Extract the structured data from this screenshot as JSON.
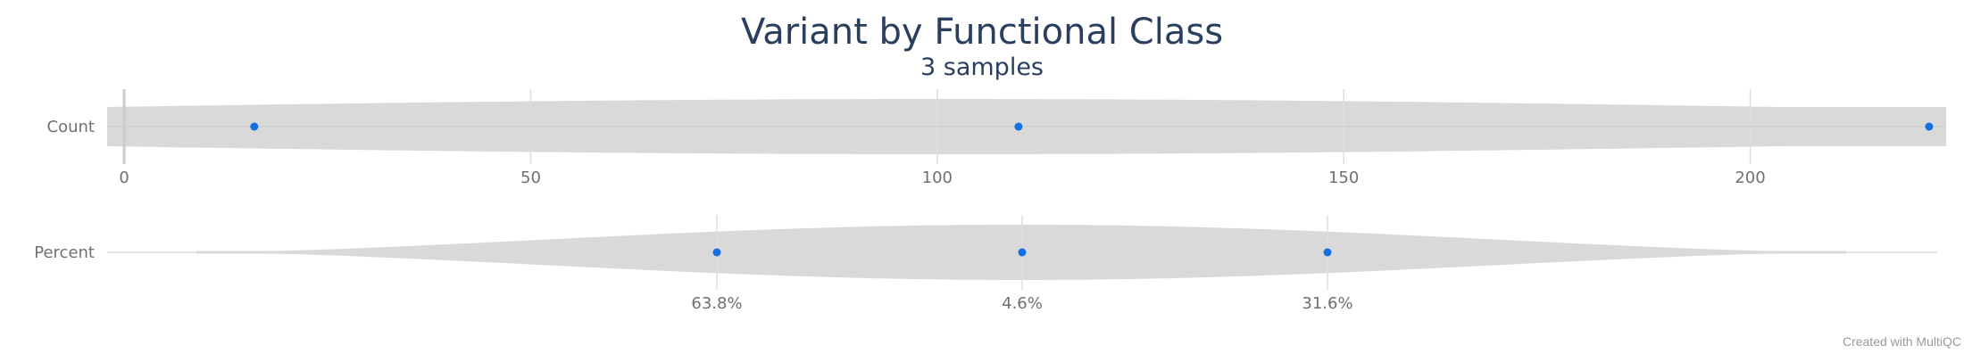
{
  "chart_data": {
    "type": "violin",
    "title": "Variant by Functional Class",
    "subtitle": "3 samples",
    "credit": "Created with MultiQC",
    "colors": {
      "violin_fill": "#d9d9d9",
      "point": "#1170e4",
      "grid": "#dedede",
      "text": "#2a3f5f"
    },
    "grid": true,
    "metrics": [
      {
        "name": "Count",
        "xlim": [
          -1,
          223
        ],
        "ticks": [
          0,
          50,
          100,
          150,
          200
        ],
        "tick_labels": [
          "0",
          "50",
          "100",
          "150",
          "200"
        ],
        "points": [
          16,
          110,
          222
        ]
      },
      {
        "name": "Percent",
        "ticks": [
          "63.8%",
          "4.6%",
          "31.6%"
        ],
        "points": [
          "63.8%",
          "4.6%",
          "31.6%"
        ]
      }
    ]
  }
}
